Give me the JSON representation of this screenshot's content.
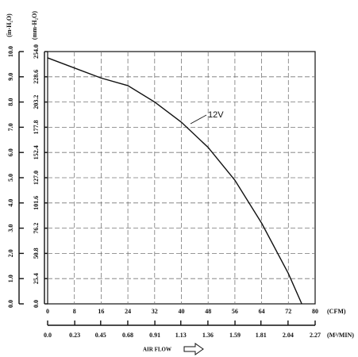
{
  "chart_data": {
    "type": "line",
    "y_label": "(in-H₂O)",
    "y2_label": "(mm-H₂O)",
    "x_unit": "(CFM)",
    "x2_unit": "(M³/MIN)",
    "x_label": "AIR FLOW",
    "x": [
      0,
      8,
      16,
      24,
      32,
      40,
      48,
      56,
      64,
      72,
      76
    ],
    "series": [
      {
        "name": "12V",
        "color": "#111111",
        "values": [
          9.75,
          9.35,
          8.95,
          8.65,
          8.0,
          7.2,
          6.2,
          4.9,
          3.2,
          1.2,
          0.0
        ]
      }
    ],
    "xlim": [
      0,
      80
    ],
    "xticks": [
      0,
      8,
      16,
      24,
      32,
      40,
      48,
      56,
      64,
      72,
      80
    ],
    "x2lim": [
      0,
      2.27
    ],
    "x2ticks": [
      {
        "value": 0,
        "label": "0.0"
      },
      0.23,
      0.45,
      0.68,
      0.91,
      1.13,
      1.36,
      1.59,
      1.81,
      2.04,
      2.27
    ],
    "ylim": [
      0,
      10
    ],
    "yticks": [
      {
        "value": 0,
        "label": "0.0"
      },
      {
        "value": 1,
        "label": "1.0"
      },
      {
        "value": 2,
        "label": "2.0"
      },
      {
        "value": 3,
        "label": "3.0"
      },
      {
        "value": 4,
        "label": "4.0"
      },
      {
        "value": 5,
        "label": "5.0"
      },
      {
        "value": 6,
        "label": "6.0"
      },
      {
        "value": 7,
        "label": "7.0"
      },
      {
        "value": 8,
        "label": "8.0"
      },
      {
        "value": 9,
        "label": "9.0"
      },
      {
        "value": 10,
        "label": "10.0"
      }
    ],
    "y2lim": [
      0,
      254
    ],
    "y2ticks": [
      {
        "value": 0,
        "label": "0.0"
      },
      25.4,
      50.8,
      76.2,
      101.6,
      {
        "value": 127,
        "label": "127.0"
      },
      152.4,
      177.8,
      203.2,
      228.6,
      {
        "value": 254,
        "label": "254.0"
      }
    ],
    "grid": true
  }
}
